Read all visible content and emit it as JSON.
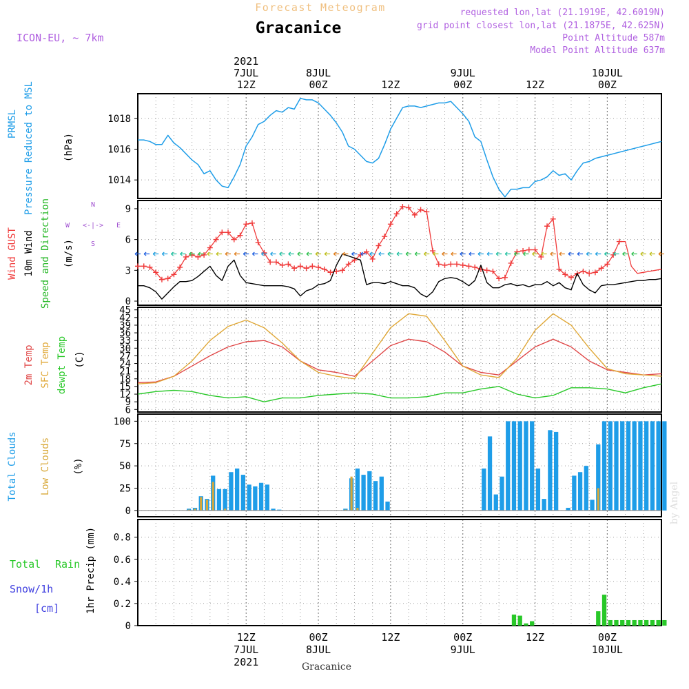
{
  "header": {
    "product": "Forecast Meteogram",
    "location": "Gracanice",
    "model": "ICON-EU, ~ 7km",
    "requested": "requested lon,lat (21.1919E, 42.6019N)",
    "grid_point": "grid point closest lon,lat (21.1875E, 42.625N)",
    "point_altitude": "Point Altitude 587m",
    "model_altitude": "Model Point Altitude 637m",
    "footer_location": "Gracanice",
    "watermark": "by Angel"
  },
  "colors": {
    "pressure": "#1e9de8",
    "gust": "#f03a3a",
    "wind": "#000000",
    "wind_dir": "#22b622",
    "compass": "#a050d0",
    "temp2m": "#e04848",
    "sfctemp": "#e0a838",
    "dewpt": "#28c828",
    "total_clouds": "#1e9de8",
    "low_clouds": "#d8a838",
    "rain": "#28c828",
    "snow": "#4040e0",
    "title_product": "#f0c080",
    "meta": "#b060e0"
  },
  "time_axis": {
    "top_ticks": [
      {
        "hour": 18,
        "lines": [
          "2021",
          "7JUL",
          "12Z"
        ]
      },
      {
        "hour": 30,
        "lines": [
          "8JUL",
          "00Z"
        ]
      },
      {
        "hour": 42,
        "lines": [
          "12Z"
        ]
      },
      {
        "hour": 54,
        "lines": [
          "9JUL",
          "00Z"
        ]
      },
      {
        "hour": 66,
        "lines": [
          "12Z"
        ]
      },
      {
        "hour": 78,
        "lines": [
          "10JUL",
          "00Z"
        ]
      }
    ],
    "bottom_ticks": [
      {
        "hour": 18,
        "lines": [
          "12Z",
          "7JUL",
          "2021"
        ]
      },
      {
        "hour": 30,
        "lines": [
          "00Z",
          "8JUL"
        ]
      },
      {
        "hour": 42,
        "lines": [
          "12Z"
        ]
      },
      {
        "hour": 54,
        "lines": [
          "00Z",
          "9JUL"
        ]
      },
      {
        "hour": 66,
        "lines": [
          "12Z"
        ]
      },
      {
        "hour": 78,
        "lines": [
          "00Z",
          "10JUL"
        ]
      }
    ]
  },
  "chart_data": [
    {
      "type": "line",
      "title": "Pressure Reduced to MSL",
      "ylabel_lines": [
        "PRMSL",
        "Pressure Reduced to MSL"
      ],
      "unit": "(hPa)",
      "ylim": [
        1012.8,
        1019.6
      ],
      "yticks": [
        1014,
        1016,
        1018
      ],
      "x_hours": [
        0,
        1,
        2,
        3,
        4,
        5,
        6,
        7,
        8,
        9,
        10,
        11,
        12,
        13,
        14,
        15,
        16,
        17,
        18,
        19,
        20,
        21,
        22,
        23,
        24,
        25,
        26,
        27,
        28,
        29,
        30,
        31,
        32,
        33,
        34,
        35,
        36,
        37,
        38,
        39,
        40,
        41,
        42,
        43,
        44,
        45,
        46,
        47,
        48,
        49,
        50,
        51,
        52,
        53,
        54,
        55,
        56,
        57,
        58,
        59,
        60,
        61,
        62,
        63,
        64,
        65,
        66,
        67,
        68,
        69,
        70,
        71,
        72,
        73,
        74,
        75,
        76,
        77,
        78,
        79,
        80,
        81,
        82,
        83,
        84,
        85,
        86,
        87
      ],
      "series": [
        {
          "name": "PRMSL",
          "values": [
            1016.6,
            1016.6,
            1016.5,
            1016.3,
            1016.3,
            1016.9,
            1016.4,
            1016.1,
            1015.7,
            1015.3,
            1015.0,
            1014.4,
            1014.6,
            1014.0,
            1013.6,
            1013.5,
            1014.2,
            1015.0,
            1016.2,
            1016.8,
            1017.6,
            1017.8,
            1018.2,
            1018.5,
            1018.4,
            1018.7,
            1018.6,
            1019.3,
            1019.2,
            1019.2,
            1019.0,
            1018.6,
            1018.2,
            1017.7,
            1017.1,
            1016.2,
            1016.0,
            1015.6,
            1015.2,
            1015.1,
            1015.4,
            1016.3,
            1017.3,
            1018.0,
            1018.7,
            1018.8,
            1018.8,
            1018.7,
            1018.8,
            1018.9,
            1019.0,
            1019.0,
            1019.1,
            1018.7,
            1018.3,
            1017.8,
            1016.8,
            1016.5,
            1015.3,
            1014.2,
            1013.4,
            1012.9,
            1013.4,
            1013.4,
            1013.5,
            1013.5,
            1013.9,
            1014.0,
            1014.2,
            1014.6,
            1014.3,
            1014.4,
            1014.0,
            1014.6,
            1015.1,
            1015.2,
            1015.4,
            1015.5,
            1015.6,
            1015.7,
            1015.8,
            1015.9,
            1016.0,
            1016.1,
            1016.2,
            1016.3,
            1016.4,
            1016.5
          ]
        }
      ]
    },
    {
      "type": "line",
      "title": "Wind",
      "ylabel_lines": [
        "Wind GUST",
        "10m Wind",
        "Speed and Direction"
      ],
      "unit": "(m/s)",
      "ylim": [
        -0.4,
        9.8
      ],
      "yticks": [
        0,
        3,
        6,
        9
      ],
      "compass": {
        "n": "N",
        "s": "S",
        "w": "W",
        "e": "E",
        "arrow": "<-|->"
      },
      "x_hours": [
        0,
        1,
        2,
        3,
        4,
        5,
        6,
        7,
        8,
        9,
        10,
        11,
        12,
        13,
        14,
        15,
        16,
        17,
        18,
        19,
        20,
        21,
        22,
        23,
        24,
        25,
        26,
        27,
        28,
        29,
        30,
        31,
        32,
        33,
        34,
        35,
        36,
        37,
        38,
        39,
        40,
        41,
        42,
        43,
        44,
        45,
        46,
        47,
        48,
        49,
        50,
        51,
        52,
        53,
        54,
        55,
        56,
        57,
        58,
        59,
        60,
        61,
        62,
        63,
        64,
        65,
        66,
        67,
        68,
        69,
        70,
        71,
        72,
        73,
        74,
        75,
        76,
        77,
        78,
        79,
        80,
        81,
        82,
        83,
        84,
        85,
        86,
        87
      ],
      "series": [
        {
          "name": "Wind GUST",
          "values": [
            3.4,
            3.4,
            3.3,
            2.8,
            2.1,
            2.2,
            2.6,
            3.3,
            4.3,
            4.5,
            4.3,
            4.5,
            5.2,
            6.0,
            6.7,
            6.7,
            6.0,
            6.4,
            7.5,
            7.6,
            5.7,
            4.7,
            3.8,
            3.8,
            3.5,
            3.6,
            3.2,
            3.4,
            3.2,
            3.4,
            3.3,
            3.1,
            2.8,
            2.9,
            3.0,
            3.6,
            4.0,
            4.5,
            4.8,
            4.1,
            5.4,
            6.3,
            7.5,
            8.5,
            9.2,
            9.1,
            8.4,
            8.9,
            8.7,
            4.9,
            3.6,
            3.5,
            3.6,
            3.6,
            3.5,
            3.4,
            3.3,
            3.1,
            3.0,
            2.9,
            2.2,
            2.3,
            3.7,
            4.8,
            4.9,
            5.0,
            5.0,
            4.3,
            7.3,
            8.0,
            3.1,
            2.6,
            2.3,
            2.7,
            2.9,
            2.7,
            2.8,
            3.2,
            3.6,
            4.5,
            5.8,
            5.8,
            3.4,
            2.7,
            2.8,
            2.9,
            3.0,
            3.1
          ]
        },
        {
          "name": "10m Wind",
          "values": [
            1.5,
            1.5,
            1.3,
            0.9,
            0.2,
            0.8,
            1.4,
            1.9,
            1.9,
            2.0,
            2.4,
            2.9,
            3.4,
            2.5,
            2.0,
            3.4,
            4.0,
            2.5,
            1.8,
            1.7,
            1.6,
            1.5,
            1.5,
            1.5,
            1.5,
            1.4,
            1.2,
            0.5,
            1.0,
            1.2,
            1.6,
            1.7,
            2.0,
            3.5,
            4.6,
            4.4,
            4.2,
            4.0,
            1.6,
            1.8,
            1.8,
            1.7,
            1.9,
            1.7,
            1.5,
            1.5,
            1.3,
            0.7,
            0.4,
            0.9,
            1.9,
            2.2,
            2.3,
            2.2,
            1.9,
            1.5,
            2.0,
            3.5,
            1.8,
            1.3,
            1.3,
            1.6,
            1.7,
            1.5,
            1.6,
            1.4,
            1.6,
            1.6,
            1.9,
            1.5,
            1.8,
            1.3,
            1.1,
            2.7,
            1.6,
            1.1,
            0.8,
            1.5,
            1.6,
            1.6,
            1.7,
            1.8,
            1.9,
            2.0,
            2.0,
            2.1,
            2.1,
            2.2
          ]
        }
      ]
    },
    {
      "type": "line",
      "title": "Temperature",
      "ylabel_lines": [
        "2m Temp",
        "SFC Temp",
        "dewpt Temp"
      ],
      "unit": "(C)",
      "ylim": [
        5,
        46
      ],
      "yticks": [
        6,
        9,
        12,
        15,
        18,
        21,
        24,
        27,
        30,
        33,
        36,
        39,
        42,
        45
      ],
      "x_hours": [
        0,
        3,
        6,
        9,
        12,
        15,
        18,
        21,
        24,
        27,
        30,
        33,
        36,
        39,
        42,
        45,
        48,
        51,
        54,
        57,
        60,
        63,
        66,
        69,
        72,
        75,
        78,
        81,
        84,
        87
      ],
      "series": [
        {
          "name": "2m Temp",
          "values": [
            16.5,
            16.8,
            19,
            23,
            27,
            30.5,
            32.5,
            33,
            30.5,
            25,
            21.5,
            20.5,
            19,
            25,
            31,
            33.5,
            32.5,
            28.5,
            23,
            20.5,
            19.5,
            25,
            30.5,
            33.5,
            30.5,
            25,
            21.5,
            20.5,
            19.5,
            20
          ]
        },
        {
          "name": "SFC Temp",
          "values": [
            16,
            16.5,
            19,
            25,
            33,
            38.5,
            41,
            38,
            32,
            25,
            20.5,
            19,
            18,
            28,
            38,
            43.5,
            42.5,
            33,
            23,
            19.5,
            18.5,
            26,
            37,
            43.5,
            39,
            30,
            22,
            20,
            19.5,
            19
          ]
        },
        {
          "name": "dewpt Temp",
          "values": [
            12,
            13,
            13.5,
            13,
            11.5,
            10.5,
            11,
            9,
            10.5,
            10.5,
            11.5,
            12,
            12.5,
            12,
            10.5,
            10.5,
            11,
            12.5,
            12.5,
            14,
            15,
            12,
            10.5,
            11.5,
            14.5,
            14.5,
            14,
            12.5,
            14.5,
            16
          ]
        }
      ]
    },
    {
      "type": "bar",
      "title": "Clouds",
      "ylabel_lines": [
        "Total Clouds",
        "Low Clouds"
      ],
      "unit": "(%)",
      "ylim": [
        -7,
        108
      ],
      "yticks": [
        0,
        25,
        50,
        75,
        100
      ],
      "x_hours": [
        0,
        1,
        2,
        3,
        4,
        5,
        6,
        7,
        8,
        9,
        10,
        11,
        12,
        13,
        14,
        15,
        16,
        17,
        18,
        19,
        20,
        21,
        22,
        23,
        24,
        25,
        26,
        27,
        28,
        29,
        30,
        31,
        32,
        33,
        34,
        35,
        36,
        37,
        38,
        39,
        40,
        41,
        42,
        43,
        44,
        45,
        46,
        47,
        48,
        49,
        50,
        51,
        52,
        53,
        54,
        55,
        56,
        57,
        58,
        59,
        60,
        61,
        62,
        63,
        64,
        65,
        66,
        67,
        68,
        69,
        70,
        71,
        72,
        73,
        74,
        75,
        76,
        77,
        78,
        79,
        80,
        81,
        82,
        83,
        84,
        85,
        86,
        87
      ],
      "series": [
        {
          "name": "Total Clouds",
          "values": [
            0,
            0,
            0,
            0,
            0,
            0,
            0,
            0,
            2,
            3,
            16,
            13,
            39,
            24,
            24,
            43,
            47,
            40,
            29,
            27,
            31,
            29,
            2,
            1,
            0,
            0,
            0,
            0,
            0,
            0,
            0,
            0,
            0,
            0,
            2,
            36,
            47,
            40,
            44,
            33,
            38,
            10,
            0,
            0,
            0,
            0,
            0,
            0,
            0,
            0,
            0,
            0,
            0,
            0,
            0,
            0,
            0,
            47,
            83,
            18,
            38,
            100,
            100,
            100,
            100,
            100,
            47,
            13,
            90,
            88,
            0,
            3,
            39,
            43,
            50,
            12,
            74,
            100,
            100,
            100,
            100,
            100,
            100,
            100,
            100,
            100,
            100,
            100
          ]
        },
        {
          "name": "Low Clouds",
          "values": [
            0,
            0,
            0,
            0,
            0,
            0,
            0,
            0,
            1,
            2,
            15,
            12,
            32,
            0,
            2,
            0,
            0,
            0,
            0,
            0,
            0,
            0,
            0,
            0,
            0,
            0,
            0,
            0,
            0,
            0,
            0,
            0,
            0,
            0,
            1,
            38,
            3,
            0,
            0,
            0,
            0,
            0,
            0,
            0,
            0,
            0,
            0,
            0,
            0,
            0,
            0,
            0,
            0,
            0,
            0,
            0,
            0,
            0,
            0,
            0,
            0,
            0,
            0,
            0,
            0,
            0,
            0,
            0,
            0,
            0,
            0,
            0,
            0,
            0,
            0,
            0,
            25,
            0,
            0,
            0,
            0,
            0,
            0,
            0,
            0,
            0,
            0,
            0
          ]
        }
      ]
    },
    {
      "type": "bar",
      "title": "Precipitation",
      "ylabel_lines": [
        "1hr Precip (mm)"
      ],
      "unit": "(mm)",
      "legend": {
        "rain_total": "Total",
        "rain_word": "Rain",
        "snow": "Snow/1h",
        "snow_unit": "[cm]"
      },
      "ylim": [
        0,
        0.96
      ],
      "yticks": [
        0,
        0.2,
        0.4,
        0.6,
        0.8
      ],
      "x_hours": [
        0,
        1,
        2,
        3,
        4,
        5,
        6,
        7,
        8,
        9,
        10,
        11,
        12,
        13,
        14,
        15,
        16,
        17,
        18,
        19,
        20,
        21,
        22,
        23,
        24,
        25,
        26,
        27,
        28,
        29,
        30,
        31,
        32,
        33,
        34,
        35,
        36,
        37,
        38,
        39,
        40,
        41,
        42,
        43,
        44,
        45,
        46,
        47,
        48,
        49,
        50,
        51,
        52,
        53,
        54,
        55,
        56,
        57,
        58,
        59,
        60,
        61,
        62,
        63,
        64,
        65,
        66,
        67,
        68,
        69,
        70,
        71,
        72,
        73,
        74,
        75,
        76,
        77,
        78,
        79,
        80,
        81,
        82,
        83,
        84,
        85,
        86,
        87
      ],
      "series": [
        {
          "name": "Total Rain",
          "values": [
            0,
            0,
            0,
            0,
            0,
            0,
            0,
            0,
            0,
            0,
            0,
            0,
            0,
            0,
            0,
            0,
            0,
            0,
            0,
            0,
            0,
            0,
            0,
            0,
            0,
            0,
            0,
            0,
            0,
            0,
            0,
            0,
            0,
            0,
            0,
            0,
            0,
            0,
            0,
            0,
            0,
            0,
            0,
            0,
            0,
            0,
            0,
            0,
            0,
            0,
            0,
            0,
            0,
            0,
            0,
            0,
            0,
            0,
            0,
            0,
            0,
            0,
            0.1,
            0.09,
            0.02,
            0.04,
            0,
            0,
            0,
            0,
            0,
            0,
            0,
            0,
            0,
            0,
            0.13,
            0.28,
            0.05,
            0.05,
            0.05,
            0.05,
            0.05,
            0.05,
            0.05,
            0.05,
            0.05,
            0.05
          ]
        }
      ]
    }
  ]
}
